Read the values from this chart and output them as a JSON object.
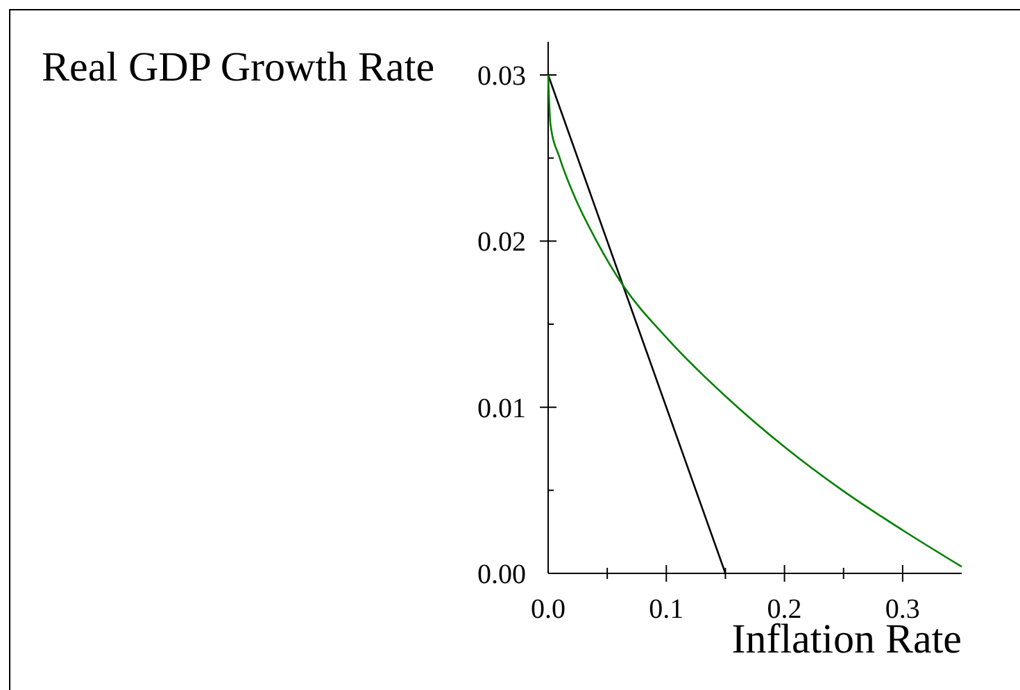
{
  "chart_data": {
    "type": "line",
    "xlabel": "Inflation Rate",
    "ylabel": "Real GDP Growth Rate",
    "xlim": [
      0,
      0.35
    ],
    "ylim": [
      0,
      0.032
    ],
    "xticks": [
      {
        "value": 0,
        "label": "0.0"
      },
      {
        "value": 0.05,
        "label": null
      },
      0.1,
      {
        "value": 0.15,
        "label": null
      },
      0.2,
      {
        "value": 0.25,
        "label": null
      },
      0.3
    ],
    "yticks": [
      {
        "value": 0,
        "label": "0.00"
      },
      {
        "value": 0.005,
        "label": null
      },
      {
        "value": 0.01,
        "label": "0.01"
      },
      {
        "value": 0.015,
        "label": null
      },
      {
        "value": 0.02,
        "label": "0.02"
      },
      {
        "value": 0.025,
        "label": null
      },
      {
        "value": 0.03,
        "label": "0.03"
      }
    ],
    "grid": false,
    "marker": "none",
    "line_style": "solid",
    "series": [
      {
        "color": "#000000",
        "x": [
          0,
          0.15
        ],
        "values": [
          0.03,
          0
        ]
      },
      {
        "color": "#008000",
        "x": [
          0,
          0.002,
          0.0098,
          0.0216,
          0.041,
          0.0627,
          0.1,
          0.151,
          0.202,
          0.249,
          0.3,
          0.35
        ],
        "values": [
          0.03,
          0.027,
          0.025,
          0.0228,
          0.02,
          0.0174,
          0.0142,
          0.0106,
          0.0075,
          0.005,
          0.0026,
          0.0004
        ]
      }
    ]
  }
}
